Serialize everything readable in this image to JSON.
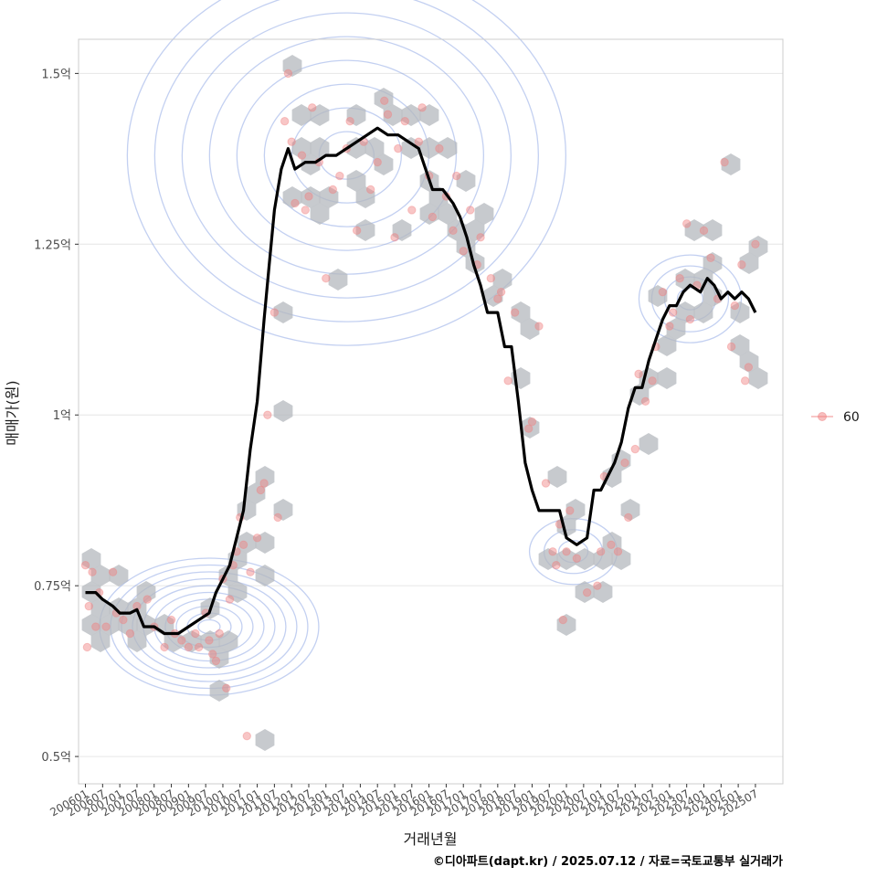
{
  "chart_data": {
    "type": "scatter",
    "xlabel": "거래년월",
    "ylabel": "매매가(원)",
    "caption": "©디아파트(dapt.kr) / 2025.07.12 / 자료=국토교통부 실거래가",
    "xlim": [
      2005.8,
      2026.3
    ],
    "ylim": [
      0.46,
      1.55
    ],
    "y_ticks": [
      {
        "value": 0.5,
        "label": "0.5억"
      },
      {
        "value": 0.75,
        "label": "0.75억"
      },
      {
        "value": 1.0,
        "label": "1억"
      },
      {
        "value": 1.25,
        "label": "1.25억"
      },
      {
        "value": 1.5,
        "label": "1.5억"
      }
    ],
    "x_ticks": [
      "200601",
      "200607",
      "200701",
      "200707",
      "200801",
      "200807",
      "200901",
      "200907",
      "201001",
      "201007",
      "201101",
      "201107",
      "201201",
      "201207",
      "201301",
      "201307",
      "201401",
      "201407",
      "201501",
      "201507",
      "201601",
      "201607",
      "201701",
      "201707",
      "201801",
      "201807",
      "201901",
      "201907",
      "202001",
      "202007",
      "202101",
      "202107",
      "202201",
      "202207",
      "202301",
      "202307",
      "202401",
      "202407",
      "202501",
      "202507"
    ],
    "legend": [
      {
        "label": "60",
        "color": "#f08080"
      }
    ],
    "colors": {
      "points": "#f08080",
      "hex": "#b4b8bd",
      "contour": "#7b96e0",
      "trend": "#000000",
      "grid": "#e6e6e6",
      "panel_border": "#cccccc"
    },
    "series": [
      {
        "name": "60",
        "kind": "points",
        "points": [
          [
            2006.0,
            0.78
          ],
          [
            2006.05,
            0.66
          ],
          [
            2006.1,
            0.72
          ],
          [
            2006.2,
            0.77
          ],
          [
            2006.3,
            0.69
          ],
          [
            2006.4,
            0.74
          ],
          [
            2006.6,
            0.69
          ],
          [
            2006.8,
            0.77
          ],
          [
            2006.9,
            0.71
          ],
          [
            2007.1,
            0.7
          ],
          [
            2007.3,
            0.68
          ],
          [
            2007.5,
            0.72
          ],
          [
            2007.8,
            0.73
          ],
          [
            2008.0,
            0.69
          ],
          [
            2008.3,
            0.66
          ],
          [
            2008.5,
            0.7
          ],
          [
            2008.6,
            0.68
          ],
          [
            2008.8,
            0.67
          ],
          [
            2009.0,
            0.66
          ],
          [
            2009.2,
            0.68
          ],
          [
            2009.3,
            0.66
          ],
          [
            2009.5,
            0.71
          ],
          [
            2009.6,
            0.67
          ],
          [
            2009.7,
            0.65
          ],
          [
            2009.8,
            0.64
          ],
          [
            2009.9,
            0.68
          ],
          [
            2010.0,
            0.76
          ],
          [
            2010.1,
            0.6
          ],
          [
            2010.2,
            0.73
          ],
          [
            2010.3,
            0.78
          ],
          [
            2010.4,
            0.8
          ],
          [
            2010.5,
            0.85
          ],
          [
            2010.6,
            0.81
          ],
          [
            2010.7,
            0.53
          ],
          [
            2010.8,
            0.77
          ],
          [
            2011.0,
            0.82
          ],
          [
            2011.1,
            0.89
          ],
          [
            2011.2,
            0.9
          ],
          [
            2011.3,
            1.0
          ],
          [
            2011.5,
            1.15
          ],
          [
            2011.6,
            0.85
          ],
          [
            2011.8,
            1.43
          ],
          [
            2011.9,
            1.5
          ],
          [
            2012.0,
            1.4
          ],
          [
            2012.1,
            1.31
          ],
          [
            2012.3,
            1.38
          ],
          [
            2012.4,
            1.3
          ],
          [
            2012.5,
            1.32
          ],
          [
            2012.6,
            1.45
          ],
          [
            2012.8,
            1.37
          ],
          [
            2013.0,
            1.2
          ],
          [
            2013.2,
            1.33
          ],
          [
            2013.4,
            1.35
          ],
          [
            2013.6,
            1.39
          ],
          [
            2013.7,
            1.43
          ],
          [
            2013.9,
            1.27
          ],
          [
            2014.1,
            1.4
          ],
          [
            2014.3,
            1.33
          ],
          [
            2014.5,
            1.37
          ],
          [
            2014.7,
            1.46
          ],
          [
            2014.8,
            1.44
          ],
          [
            2015.0,
            1.26
          ],
          [
            2015.1,
            1.39
          ],
          [
            2015.3,
            1.43
          ],
          [
            2015.5,
            1.3
          ],
          [
            2015.7,
            1.4
          ],
          [
            2015.8,
            1.45
          ],
          [
            2016.0,
            1.35
          ],
          [
            2016.1,
            1.29
          ],
          [
            2016.3,
            1.39
          ],
          [
            2016.5,
            1.32
          ],
          [
            2016.7,
            1.27
          ],
          [
            2016.8,
            1.35
          ],
          [
            2017.0,
            1.24
          ],
          [
            2017.2,
            1.3
          ],
          [
            2017.4,
            1.22
          ],
          [
            2017.5,
            1.26
          ],
          [
            2017.8,
            1.2
          ],
          [
            2018.0,
            1.17
          ],
          [
            2018.1,
            1.18
          ],
          [
            2018.3,
            1.05
          ],
          [
            2018.5,
            1.15
          ],
          [
            2018.9,
            0.98
          ],
          [
            2019.0,
            0.99
          ],
          [
            2019.2,
            1.13
          ],
          [
            2019.4,
            0.9
          ],
          [
            2019.6,
            0.8
          ],
          [
            2019.7,
            0.78
          ],
          [
            2019.8,
            0.84
          ],
          [
            2019.9,
            0.7
          ],
          [
            2020.0,
            0.8
          ],
          [
            2020.1,
            0.86
          ],
          [
            2020.3,
            0.79
          ],
          [
            2020.6,
            0.74
          ],
          [
            2020.9,
            0.75
          ],
          [
            2021.0,
            0.8
          ],
          [
            2021.1,
            0.91
          ],
          [
            2021.3,
            0.81
          ],
          [
            2021.5,
            0.8
          ],
          [
            2021.7,
            0.93
          ],
          [
            2021.8,
            0.85
          ],
          [
            2022.0,
            0.95
          ],
          [
            2022.1,
            1.06
          ],
          [
            2022.3,
            1.02
          ],
          [
            2022.5,
            1.05
          ],
          [
            2022.6,
            1.1
          ],
          [
            2022.8,
            1.18
          ],
          [
            2023.0,
            1.13
          ],
          [
            2023.1,
            1.15
          ],
          [
            2023.3,
            1.2
          ],
          [
            2023.5,
            1.28
          ],
          [
            2023.6,
            1.14
          ],
          [
            2023.8,
            1.19
          ],
          [
            2024.0,
            1.27
          ],
          [
            2024.2,
            1.23
          ],
          [
            2024.4,
            1.17
          ],
          [
            2024.6,
            1.37
          ],
          [
            2024.8,
            1.1
          ],
          [
            2024.9,
            1.16
          ],
          [
            2025.1,
            1.22
          ],
          [
            2025.2,
            1.05
          ],
          [
            2025.3,
            1.07
          ],
          [
            2025.5,
            1.25
          ]
        ]
      },
      {
        "name": "rolling-average",
        "kind": "line",
        "points": [
          [
            2006.0,
            0.74
          ],
          [
            2006.3,
            0.74
          ],
          [
            2006.5,
            0.73
          ],
          [
            2006.8,
            0.72
          ],
          [
            2007.0,
            0.71
          ],
          [
            2007.3,
            0.71
          ],
          [
            2007.5,
            0.715
          ],
          [
            2007.7,
            0.69
          ],
          [
            2008.0,
            0.69
          ],
          [
            2008.3,
            0.68
          ],
          [
            2008.7,
            0.68
          ],
          [
            2009.0,
            0.69
          ],
          [
            2009.3,
            0.7
          ],
          [
            2009.6,
            0.71
          ],
          [
            2009.8,
            0.74
          ],
          [
            2010.0,
            0.76
          ],
          [
            2010.2,
            0.78
          ],
          [
            2010.4,
            0.82
          ],
          [
            2010.6,
            0.86
          ],
          [
            2010.8,
            0.95
          ],
          [
            2011.0,
            1.02
          ],
          [
            2011.2,
            1.14
          ],
          [
            2011.35,
            1.22
          ],
          [
            2011.5,
            1.3
          ],
          [
            2011.7,
            1.36
          ],
          [
            2011.9,
            1.39
          ],
          [
            2012.1,
            1.36
          ],
          [
            2012.4,
            1.37
          ],
          [
            2012.7,
            1.37
          ],
          [
            2013.0,
            1.38
          ],
          [
            2013.3,
            1.38
          ],
          [
            2013.6,
            1.39
          ],
          [
            2013.9,
            1.4
          ],
          [
            2014.2,
            1.41
          ],
          [
            2014.5,
            1.42
          ],
          [
            2014.8,
            1.41
          ],
          [
            2015.1,
            1.41
          ],
          [
            2015.4,
            1.4
          ],
          [
            2015.7,
            1.39
          ],
          [
            2015.9,
            1.36
          ],
          [
            2016.1,
            1.33
          ],
          [
            2016.4,
            1.33
          ],
          [
            2016.7,
            1.31
          ],
          [
            2016.9,
            1.29
          ],
          [
            2017.1,
            1.26
          ],
          [
            2017.3,
            1.22
          ],
          [
            2017.5,
            1.19
          ],
          [
            2017.7,
            1.15
          ],
          [
            2018.0,
            1.15
          ],
          [
            2018.2,
            1.1
          ],
          [
            2018.4,
            1.1
          ],
          [
            2018.6,
            1.02
          ],
          [
            2018.8,
            0.93
          ],
          [
            2019.0,
            0.89
          ],
          [
            2019.2,
            0.86
          ],
          [
            2019.5,
            0.86
          ],
          [
            2019.8,
            0.86
          ],
          [
            2020.0,
            0.82
          ],
          [
            2020.3,
            0.81
          ],
          [
            2020.6,
            0.82
          ],
          [
            2020.8,
            0.89
          ],
          [
            2021.0,
            0.89
          ],
          [
            2021.2,
            0.91
          ],
          [
            2021.4,
            0.93
          ],
          [
            2021.6,
            0.96
          ],
          [
            2021.8,
            1.01
          ],
          [
            2022.0,
            1.04
          ],
          [
            2022.2,
            1.04
          ],
          [
            2022.4,
            1.08
          ],
          [
            2022.6,
            1.11
          ],
          [
            2022.8,
            1.14
          ],
          [
            2023.0,
            1.16
          ],
          [
            2023.2,
            1.16
          ],
          [
            2023.4,
            1.18
          ],
          [
            2023.6,
            1.19
          ],
          [
            2023.9,
            1.18
          ],
          [
            2024.1,
            1.2
          ],
          [
            2024.3,
            1.19
          ],
          [
            2024.5,
            1.17
          ],
          [
            2024.7,
            1.18
          ],
          [
            2024.9,
            1.17
          ],
          [
            2025.1,
            1.18
          ],
          [
            2025.3,
            1.17
          ],
          [
            2025.5,
            1.15
          ]
        ]
      }
    ],
    "density_clusters": [
      {
        "name": "cluster-2009",
        "center": [
          2009.6,
          0.69
        ],
        "levels": 10
      },
      {
        "name": "cluster-2014",
        "center": [
          2013.6,
          1.38
        ],
        "levels": 8
      },
      {
        "name": "cluster-2020",
        "center": [
          2020.2,
          0.8
        ],
        "levels": 3
      },
      {
        "name": "cluster-2023",
        "center": [
          2023.6,
          1.17
        ],
        "levels": 4
      }
    ]
  }
}
